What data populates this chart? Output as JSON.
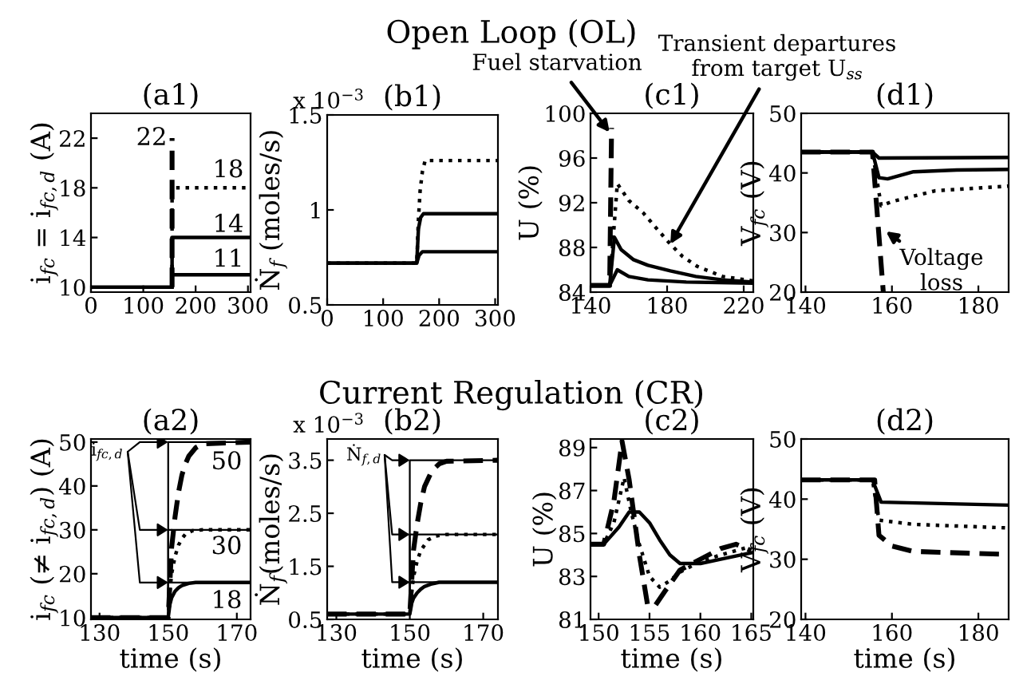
{
  "chart_data": [
    {
      "type": "line",
      "title": "(a1)",
      "ylabel": "i$_{fc}$ = i$_{fc,d}$ (A)",
      "xlim": [
        0,
        305
      ],
      "ylim": [
        9.6,
        24
      ],
      "xticks": [
        0,
        100,
        200,
        300
      ],
      "yticks": [
        10,
        14,
        18,
        22
      ],
      "series": [
        {
          "color": "#000000",
          "line_style": "dashed",
          "x": [
            155,
            155
          ],
          "values": [
            10,
            22
          ]
        },
        {
          "color": "#000000",
          "line_style": "dotted",
          "x": [
            155,
            155,
            305
          ],
          "values": [
            10,
            18,
            18
          ]
        },
        {
          "color": "#000000",
          "line_style": "solid",
          "x": [
            155,
            155,
            305
          ],
          "values": [
            10,
            14,
            14
          ]
        },
        {
          "color": "#000000",
          "line_style": "solid",
          "x": [
            0,
            155,
            155,
            305
          ],
          "values": [
            10,
            10,
            11,
            11
          ]
        }
      ],
      "annotations": [
        "22",
        "18",
        "14",
        "11",
        "Open Loop (OL)"
      ]
    },
    {
      "type": "line",
      "title": "(b1)",
      "ylabel": "Ṅ$_{f}$ (moles/s)",
      "xlim": [
        0,
        305
      ],
      "ylim": [
        0.5,
        1.5
      ],
      "xticks": [
        0,
        100,
        200,
        300
      ],
      "yticks": [
        0.5,
        1,
        1.5
      ],
      "series": [
        {
          "color": "#000000",
          "line_style": "dotted",
          "x": [
            0,
            160,
            163,
            166,
            170,
            175,
            305
          ],
          "values": [
            0.72,
            0.72,
            0.95,
            1.1,
            1.2,
            1.26,
            1.26
          ]
        },
        {
          "color": "#000000",
          "line_style": "solid",
          "x": [
            0,
            160,
            163,
            167,
            172,
            305
          ],
          "values": [
            0.72,
            0.72,
            0.9,
            0.96,
            0.98,
            0.98
          ]
        },
        {
          "color": "#000000",
          "line_style": "solid",
          "x": [
            0,
            160,
            164,
            170,
            305
          ],
          "values": [
            0.72,
            0.72,
            0.76,
            0.78,
            0.78
          ]
        }
      ],
      "annotations": [
        "x 10$^{−3}$"
      ]
    },
    {
      "type": "line",
      "title": "(c1)",
      "ylabel": "U (%)",
      "xlim": [
        140,
        225
      ],
      "ylim": [
        84,
        100
      ],
      "xticks": [
        140,
        180,
        220
      ],
      "yticks": [
        84,
        88,
        92,
        96,
        100
      ],
      "series": [
        {
          "color": "#000000",
          "line_style": "dashed",
          "x": [
            140,
            150,
            151
          ],
          "values": [
            84.6,
            84.6,
            98.7
          ]
        },
        {
          "color": "#000000",
          "line_style": "dotted",
          "x": [
            140,
            150,
            154,
            160,
            167.5,
            175,
            181.7,
            188,
            195.8,
            209,
            225
          ],
          "values": [
            84.6,
            84.6,
            93.7,
            92.2,
            91.1,
            89.6,
            88.3,
            87.2,
            86.3,
            85.4,
            85
          ]
        },
        {
          "color": "#000000",
          "line_style": "solid",
          "x": [
            140,
            150,
            152.5,
            156,
            162.5,
            170,
            181.7,
            195,
            209,
            225
          ],
          "values": [
            84.6,
            84.6,
            88.9,
            87.8,
            86.9,
            86.4,
            85.9,
            85.4,
            85.1,
            84.9
          ]
        },
        {
          "color": "#000000",
          "line_style": "solid",
          "x": [
            140,
            150,
            154,
            160,
            170,
            190,
            225
          ],
          "values": [
            84.6,
            84.6,
            86,
            85.4,
            85.1,
            84.9,
            84.8
          ]
        }
      ],
      "annotations": [
        {
          "text": "Fuel starvation",
          "x": 150,
          "y": 98.3
        },
        {
          "text": "Transient departures\nfrom target U$_{ss}$",
          "x": 181.7,
          "y": 88.3
        }
      ]
    },
    {
      "type": "line",
      "title": "(d1)",
      "ylabel": "V$_{fc}$ (V)",
      "xlim": [
        139,
        187
      ],
      "ylim": [
        20,
        50
      ],
      "xticks": [
        140,
        160,
        180
      ],
      "yticks": [
        20,
        30,
        40,
        50
      ],
      "series": [
        {
          "color": "#000000",
          "line_style": "solid",
          "x": [
            139,
            155.5,
            157,
            187
          ],
          "values": [
            43.5,
            43.5,
            42.5,
            42.6
          ]
        },
        {
          "color": "#000000",
          "line_style": "solid",
          "x": [
            139,
            155.5,
            157,
            159,
            165,
            175,
            187
          ],
          "values": [
            43.5,
            43.5,
            39.2,
            39,
            40.2,
            40.5,
            40.6
          ]
        },
        {
          "color": "#000000",
          "line_style": "dotted",
          "x": [
            139,
            155.5,
            157.5,
            160,
            170,
            187
          ],
          "values": [
            43.5,
            43.5,
            34.5,
            35.2,
            37,
            37.8
          ]
        },
        {
          "color": "#000000",
          "line_style": "dashed",
          "x": [
            139,
            155.5,
            158
          ],
          "values": [
            43.5,
            43.5,
            20
          ]
        }
      ],
      "annotations": [
        {
          "text": "Voltage\nloss",
          "x": 158.6,
          "y": 30.2
        }
      ]
    },
    {
      "type": "line",
      "title": "(a2)",
      "xlabel": "time (s)",
      "ylabel": "i$_{fc}$ (≠ i$_{fc,d}$) (A)",
      "xlim": [
        127.5,
        174
      ],
      "ylim": [
        9.6,
        50.7
      ],
      "xticks": [
        130,
        150,
        170
      ],
      "yticks": [
        10,
        20,
        30,
        40,
        50
      ],
      "series": [
        {
          "type": "step",
          "color": "#000000",
          "x": [
            127.5,
            150,
            174
          ],
          "values": [
            10,
            50,
            50
          ]
        },
        {
          "type": "step",
          "color": "#000000",
          "x": [
            127.5,
            150,
            174
          ],
          "values": [
            10,
            30,
            30
          ]
        },
        {
          "type": "step",
          "color": "#000000",
          "x": [
            127.5,
            150,
            174
          ],
          "values": [
            10,
            18,
            18
          ]
        },
        {
          "color": "#000000",
          "line_style": "solid",
          "x": [
            127.5,
            150,
            150.5,
            151,
            152,
            153,
            154,
            156,
            158,
            174
          ],
          "values": [
            10,
            10,
            13,
            14.5,
            16,
            16.8,
            17.3,
            17.8,
            18,
            18
          ]
        },
        {
          "color": "#000000",
          "line_style": "dotted",
          "x": [
            127.5,
            150,
            150.5,
            151,
            152,
            153,
            154,
            155,
            157,
            160,
            174
          ],
          "values": [
            10,
            10,
            16,
            20,
            24,
            26.5,
            28,
            29,
            29.8,
            30,
            30
          ]
        },
        {
          "color": "#000000",
          "line_style": "dashed",
          "x": [
            127.5,
            150,
            150.5,
            151,
            152,
            153,
            154,
            155,
            156,
            158,
            160,
            174
          ],
          "values": [
            10,
            10,
            18,
            26,
            33,
            38.5,
            42.5,
            45,
            46.8,
            48.7,
            49.6,
            50
          ]
        }
      ],
      "annotations": [
        {
          "text": "i$_{fc,d}$",
          "x": 150,
          "y": 50
        },
        "50",
        "30",
        "18",
        "Current Regulation (CR)"
      ]
    },
    {
      "type": "line",
      "title": "(b2)",
      "xlabel": "time (s)",
      "ylabel": "Ṅ$_{f}$(moles/s)",
      "xlim": [
        127.5,
        174
      ],
      "ylim": [
        0.5,
        3.9
      ],
      "xticks": [
        130,
        150,
        170
      ],
      "yticks": [
        0.5,
        1.5,
        2.5,
        3.5
      ],
      "series": [
        {
          "type": "step",
          "color": "#000000",
          "x": [
            127.5,
            150,
            174
          ],
          "values": [
            0.6,
            3.5,
            3.5
          ]
        },
        {
          "type": "step",
          "color": "#000000",
          "x": [
            127.5,
            150,
            174
          ],
          "values": [
            0.6,
            2.1,
            2.1
          ]
        },
        {
          "type": "step",
          "color": "#000000",
          "x": [
            127.5,
            150,
            174
          ],
          "values": [
            0.6,
            1.2,
            1.2
          ]
        },
        {
          "color": "#000000",
          "line_style": "solid",
          "x": [
            127.5,
            150,
            150.5,
            151,
            152,
            153,
            154,
            156,
            158,
            174
          ],
          "values": [
            0.6,
            0.6,
            0.8,
            0.9,
            1.0,
            1.07,
            1.12,
            1.17,
            1.2,
            1.2
          ]
        },
        {
          "color": "#000000",
          "line_style": "dotted",
          "x": [
            127.5,
            150,
            150.5,
            151,
            152,
            153,
            154,
            155,
            157,
            160,
            174
          ],
          "values": [
            0.6,
            0.6,
            1.0,
            1.3,
            1.6,
            1.8,
            1.9,
            2.0,
            2.07,
            2.1,
            2.1
          ]
        },
        {
          "color": "#000000",
          "line_style": "dashed",
          "x": [
            127.5,
            150,
            150.5,
            151,
            152,
            153,
            154,
            155,
            156,
            158,
            160,
            174
          ],
          "values": [
            0.6,
            0.6,
            1.2,
            1.8,
            2.3,
            2.7,
            3.0,
            3.15,
            3.3,
            3.43,
            3.48,
            3.5
          ]
        }
      ],
      "annotations": [
        "x 10$^{−3}$",
        {
          "text": "Ṅ$_{f,d}$",
          "x": 150,
          "y": 3.5
        }
      ]
    },
    {
      "type": "line",
      "title": "(c2)",
      "xlabel": "time (s)",
      "ylabel": "U (%)",
      "xlim": [
        149.2,
        165.2
      ],
      "ylim": [
        81,
        89.4
      ],
      "xticks": [
        150,
        155,
        160,
        165
      ],
      "yticks": [
        81,
        83,
        85,
        87,
        89
      ],
      "series": [
        {
          "color": "#000000",
          "line_style": "solid",
          "x": [
            149.2,
            150.5,
            152,
            153,
            154,
            155,
            156,
            157,
            158,
            160,
            162,
            165
          ],
          "values": [
            84.5,
            84.5,
            85.3,
            86,
            86,
            85.5,
            84.7,
            84,
            83.6,
            83.6,
            83.8,
            84.1
          ]
        },
        {
          "color": "#000000",
          "line_style": "dotted",
          "x": [
            149.2,
            150.5,
            151.5,
            152.5,
            153.2,
            154,
            155,
            156,
            157,
            158,
            160,
            162,
            165
          ],
          "values": [
            84.5,
            84.5,
            85.5,
            87.6,
            86,
            84.5,
            83,
            82.5,
            82.8,
            83.2,
            83.7,
            84,
            84.4
          ]
        },
        {
          "color": "#000000",
          "line_style": "dashed",
          "x": [
            149.2,
            150.5,
            151.5,
            152.3,
            153,
            154,
            154.8,
            155.5,
            156.5,
            158,
            160,
            162,
            163.5,
            165
          ],
          "values": [
            84.5,
            84.5,
            86.5,
            89.3,
            87.5,
            84,
            81.7,
            81.6,
            82.3,
            83.3,
            83.8,
            84.3,
            84.5,
            84.2
          ]
        }
      ]
    },
    {
      "type": "line",
      "title": "(d2)",
      "xlabel": "time (s)",
      "ylabel": "V$_{fc}$ (V)",
      "xlim": [
        139,
        187
      ],
      "ylim": [
        20,
        50
      ],
      "xticks": [
        140,
        160,
        180
      ],
      "yticks": [
        20,
        30,
        40,
        50
      ],
      "series": [
        {
          "color": "#000000",
          "line_style": "solid",
          "x": [
            139,
            155.5,
            157.5,
            187
          ],
          "values": [
            43.2,
            43.2,
            39.5,
            39
          ]
        },
        {
          "color": "#000000",
          "line_style": "dotted",
          "x": [
            139,
            155.5,
            157,
            165,
            187
          ],
          "values": [
            43.2,
            43.2,
            36.5,
            35.8,
            35.2
          ]
        },
        {
          "color": "#000000",
          "line_style": "dashed",
          "x": [
            139,
            156,
            157,
            160,
            165,
            187
          ],
          "values": [
            43.2,
            43.2,
            34,
            32.2,
            31.3,
            30.8
          ]
        }
      ]
    }
  ]
}
